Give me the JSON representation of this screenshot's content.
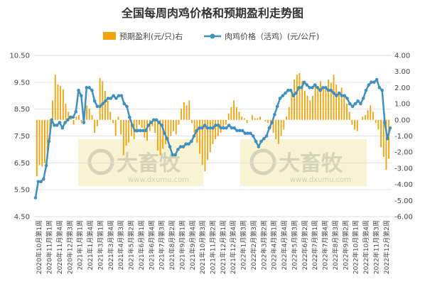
{
  "colors": {
    "bar": "#f0a30a",
    "line": "#3f8fbf",
    "grid": "#e2e2e2",
    "watermark_bg": "#f5f0c8"
  },
  "watermark": {
    "brand": "大畜牧",
    "url": "www.dxumu.com"
  },
  "chart_data": {
    "type": "bar+line",
    "title": "全国每周肉鸡价格和预期盈利走势图",
    "left_axis": {
      "ylim": [
        4.5,
        10.5
      ],
      "ticks": [
        "4.50",
        "5.50",
        "6.50",
        "7.50",
        "8.50",
        "9.50",
        "10.50"
      ]
    },
    "right_axis": {
      "ylim": [
        -6.0,
        4.0
      ],
      "ticks": [
        "4.00",
        "3.00",
        "2.00",
        "1.00",
        "0.00",
        "-1.00",
        "-2.00",
        "-3.00",
        "-4.00",
        "-5.00",
        "-6.00"
      ]
    },
    "x_tick_labels": [
      "2020年10月第1周",
      "2020年11月第1周",
      "2020年11月第4周",
      "2020年12月第3周",
      "2021年1月第1周",
      "2021年1月第4周",
      "2021年3月第1周",
      "2021年3月第4周",
      "2021年4月第3周",
      "2021年5月第2周",
      "2021年6月第1周",
      "2021年6月第4周",
      "2021年7月第3周",
      "2021年8月第2周",
      "2021年9月第1周",
      "2021年9月第4周",
      "2021年10月第3周",
      "2021年11月第2周",
      "2021年12月第1周",
      "2021年12月第4周",
      "2022年1月第3周",
      "2022年2月第3周",
      "2022年3月第2周",
      "2022年4月第1周",
      "2022年4月第4周",
      "2022年5月第3周",
      "2022年6月第2周",
      "2022年7月第1周",
      "2022年7月第4周",
      "2022年8月第3周",
      "2022年9月第2周",
      "2022年10月第1周",
      "2022年10月第4周",
      "2022年11月第3周",
      "2022年12月第2周"
    ],
    "series": [
      {
        "name": "预期盈利(元/只)右",
        "type": "bar",
        "axis": "right",
        "values": [
          -3.5,
          -2.8,
          -2.9,
          -2.7,
          -2.0,
          -1.2,
          1.2,
          2.8,
          2.2,
          2.1,
          1.9,
          1.0,
          0.5,
          0.1,
          -0.3,
          0.2,
          0.3,
          -0.2,
          -0.1,
          0.9,
          0.7,
          0.3,
          -0.8,
          -0.4,
          2.6,
          2.4,
          1.8,
          1.2,
          0.5,
          -0.2,
          -1.0,
          0.2,
          -0.9,
          -2.2,
          -1.6,
          -1.4,
          -1.0,
          -1.2,
          -0.8,
          -0.3,
          -0.5,
          -1.1,
          -1.3,
          -0.7,
          -0.4,
          -0.8,
          -1.9,
          -2.2,
          -1.8,
          -1.5,
          -1.3,
          -1.0,
          -0.7,
          -0.9,
          -0.3,
          0.7,
          1.1,
          0.9,
          1.2,
          -0.2,
          -0.8,
          -1.4,
          -2.1,
          -2.8,
          -3.2,
          -2.5,
          -2.0,
          -1.5,
          -1.2,
          -1.0,
          -0.8,
          -0.5,
          -0.3,
          0.4,
          0.8,
          1.2,
          0.8,
          0.5,
          0.2,
          0.1,
          -0.2,
          0.0,
          0.3,
          0.1,
          0.1,
          0.2,
          0.0,
          -0.1,
          -0.2,
          -0.5,
          -0.8,
          -1.2,
          -1.5,
          -1.0,
          -0.6,
          0.2,
          0.8,
          1.8,
          2.5,
          2.8,
          2.9,
          2.4,
          1.8,
          1.5,
          1.2,
          1.5,
          2.2,
          2.0,
          2.4,
          1.9,
          2.1,
          2.5,
          2.3,
          2.8,
          2.2,
          1.6,
          2.0,
          1.6,
          1.0,
          0.5,
          -0.3,
          -0.6,
          -0.7,
          0.0,
          0.2,
          0.3,
          0.6,
          0.9,
          0.5,
          -0.2,
          -0.6,
          -1.7,
          -2.3,
          -3.1,
          -2.4
        ]
      },
      {
        "name": "肉鸡价格（活鸡）(元/公斤)",
        "type": "line",
        "axis": "left",
        "values": [
          5.2,
          5.8,
          5.8,
          5.9,
          6.4,
          7.3,
          8.1,
          7.9,
          7.9,
          8.0,
          7.8,
          8.0,
          8.1,
          8.2,
          8.2,
          8.4,
          9.2,
          9.0,
          8.0,
          9.3,
          9.3,
          9.2,
          8.8,
          8.6,
          8.6,
          8.7,
          8.8,
          8.9,
          8.9,
          9.0,
          8.9,
          9.0,
          9.0,
          8.7,
          8.6,
          8.2,
          7.9,
          7.7,
          7.7,
          7.7,
          7.7,
          7.7,
          7.9,
          8.0,
          8.1,
          8.1,
          8.0,
          7.9,
          7.6,
          7.4,
          7.1,
          6.8,
          6.8,
          7.0,
          7.1,
          7.1,
          7.2,
          7.2,
          7.3,
          7.5,
          7.7,
          7.8,
          7.8,
          7.9,
          7.8,
          7.8,
          7.8,
          7.9,
          7.9,
          7.8,
          7.8,
          7.8,
          7.9,
          7.8,
          7.8,
          7.7,
          7.7,
          7.7,
          7.6,
          7.6,
          7.6,
          7.5,
          7.3,
          7.1,
          7.3,
          7.4,
          7.5,
          7.8,
          8.0,
          8.3,
          8.6,
          8.9,
          9.0,
          9.1,
          9.2,
          9.2,
          9.0,
          9.1,
          9.3,
          9.3,
          9.5,
          9.4,
          9.3,
          9.3,
          9.4,
          9.3,
          9.2,
          9.3,
          9.3,
          9.2,
          9.2,
          9.1,
          9.0,
          9.1,
          9.0,
          9.0,
          8.9,
          8.7,
          8.6,
          8.7,
          8.8,
          8.7,
          8.9,
          9.2,
          9.4,
          9.5,
          9.5,
          9.6,
          9.3,
          9.2,
          8.0,
          7.4,
          7.8
        ]
      }
    ],
    "legend_position": "top",
    "grid": "horizontal"
  }
}
